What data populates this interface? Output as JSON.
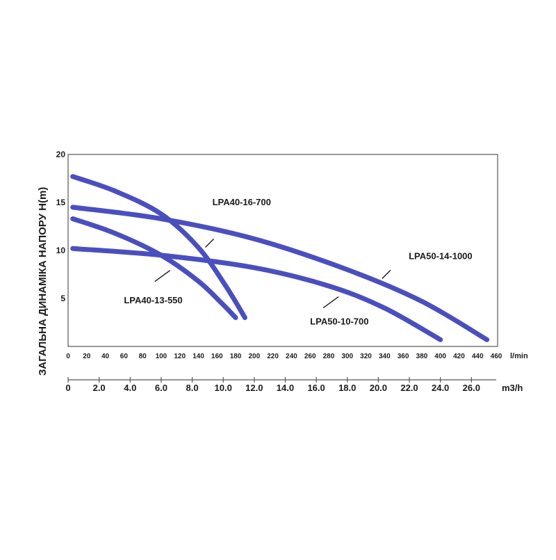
{
  "chart_data": {
    "type": "line",
    "ylabel": "ЗАГАЛЬНА ДИНАМІКА НАПОРУ H(m)",
    "x_unit_primary": "l/min",
    "x_unit_secondary": "m3/h",
    "xlim": [
      0,
      460
    ],
    "ylim": [
      0,
      20
    ],
    "x_ticks_lmin": [
      "0",
      "20",
      "40",
      "60",
      "80",
      "100",
      "120",
      "140",
      "160",
      "180",
      "200",
      "220",
      "240",
      "260",
      "280",
      "300",
      "320",
      "340",
      "360",
      "380",
      "400",
      "420",
      "440",
      "460"
    ],
    "x_ticks_m3h": [
      "0",
      "2.0",
      "4.0",
      "6.0",
      "8.0",
      "10.0",
      "12.0",
      "14.0",
      "16.0",
      "18.0",
      "20.0",
      "22.0",
      "24.0",
      "26.0"
    ],
    "y_ticks": [
      "5",
      "10",
      "15",
      "20"
    ],
    "grid": false,
    "series": [
      {
        "name": "LPA40-16-700",
        "x": [
          5,
          50,
          100,
          140,
          170,
          190
        ],
        "y": [
          17.7,
          16.2,
          13.8,
          10.3,
          6.2,
          3.0
        ]
      },
      {
        "name": "LPA40-13-550",
        "x": [
          5,
          50,
          100,
          140,
          165,
          180
        ],
        "y": [
          13.3,
          11.8,
          9.5,
          6.8,
          4.5,
          3.0
        ]
      },
      {
        "name": "LPA50-14-1000",
        "x": [
          5,
          100,
          200,
          300,
          380,
          450
        ],
        "y": [
          14.5,
          13.3,
          11.2,
          8.0,
          4.7,
          0.7
        ]
      },
      {
        "name": "LPA50-10-700",
        "x": [
          5,
          100,
          200,
          280,
          340,
          400
        ],
        "y": [
          10.2,
          9.5,
          8.2,
          6.3,
          4.0,
          0.7
        ]
      }
    ],
    "annotations": [
      {
        "text": "LPA40-16-700",
        "series": 0,
        "at_x": 143,
        "label_x": 155,
        "label_y": 14.7
      },
      {
        "text": "LPA40-13-550",
        "series": 1,
        "at_x": 117,
        "label_x": 60,
        "label_y": 4.5
      },
      {
        "text": "LPA50-14-1000",
        "series": 2,
        "at_x": 333,
        "label_x": 366,
        "label_y": 9.1
      },
      {
        "text": "LPA50-10-700",
        "series": 3,
        "at_x": 298,
        "label_x": 260,
        "label_y": 2.3
      }
    ],
    "colors": {
      "curve": "#4a4fbf",
      "axis": "#555555"
    }
  }
}
